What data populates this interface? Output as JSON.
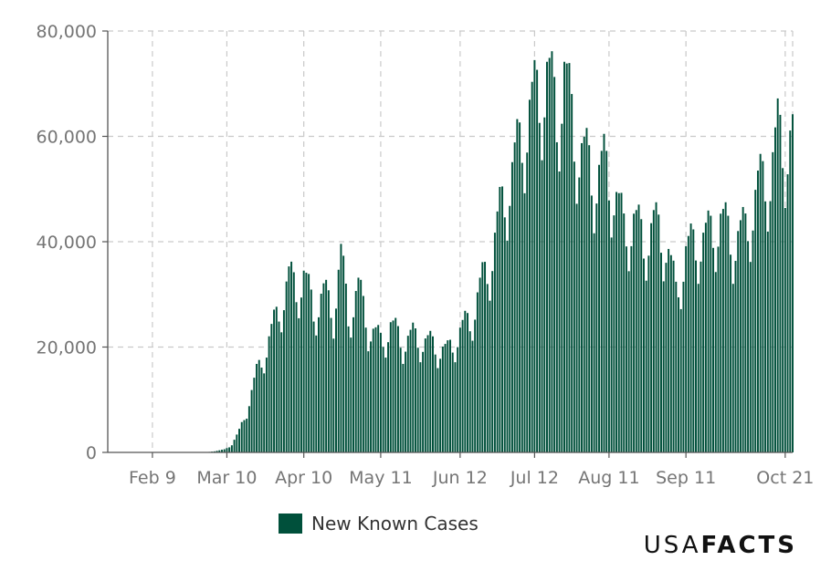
{
  "chart_data": {
    "type": "bar",
    "title": "",
    "xlabel": "",
    "ylabel": "",
    "ylim": [
      0,
      80000
    ],
    "yticks": [
      0,
      20000,
      40000,
      60000,
      80000
    ],
    "ytick_labels": [
      "0",
      "20,000",
      "40,000",
      "60,000",
      "80,000"
    ],
    "x_start": "2020-01-22",
    "x_end": "2020-10-24",
    "xtick_labels": [
      {
        "date": "2020-02-09",
        "label": "Feb 9"
      },
      {
        "date": "2020-03-10",
        "label": "Mar 10"
      },
      {
        "date": "2020-04-10",
        "label": "Apr 10"
      },
      {
        "date": "2020-05-11",
        "label": "May 11"
      },
      {
        "date": "2020-06-12",
        "label": "Jun 12"
      },
      {
        "date": "2020-07-12",
        "label": "Jul 12"
      },
      {
        "date": "2020-08-11",
        "label": "Aug 11"
      },
      {
        "date": "2020-09-11",
        "label": "Sep 11"
      },
      {
        "date": "2020-10-21",
        "label": "Oct 21"
      }
    ],
    "grid": true,
    "series": [
      {
        "name": "New Known Cases",
        "color": "#00503b",
        "anchors": [
          [
            "2020-01-22",
            0
          ],
          [
            "2020-03-01",
            0
          ],
          [
            "2020-03-05",
            200
          ],
          [
            "2020-03-09",
            600
          ],
          [
            "2020-03-12",
            1500
          ],
          [
            "2020-03-15",
            4000
          ],
          [
            "2020-03-18",
            8000
          ],
          [
            "2020-03-22",
            15000
          ],
          [
            "2020-03-26",
            20000
          ],
          [
            "2020-03-31",
            27000
          ],
          [
            "2020-04-04",
            33000
          ],
          [
            "2020-04-07",
            31000
          ],
          [
            "2020-04-10",
            33500
          ],
          [
            "2020-04-14",
            27000
          ],
          [
            "2020-04-18",
            30000
          ],
          [
            "2020-04-22",
            27000
          ],
          [
            "2020-04-25",
            37000
          ],
          [
            "2020-04-28",
            26000
          ],
          [
            "2020-05-02",
            31000
          ],
          [
            "2020-05-06",
            24000
          ],
          [
            "2020-05-11",
            21000
          ],
          [
            "2020-05-15",
            24000
          ],
          [
            "2020-05-20",
            21000
          ],
          [
            "2020-05-24",
            22000
          ],
          [
            "2020-05-29",
            21000
          ],
          [
            "2020-06-03",
            20000
          ],
          [
            "2020-06-07",
            19000
          ],
          [
            "2020-06-12",
            23000
          ],
          [
            "2020-06-16",
            25000
          ],
          [
            "2020-06-20",
            31000
          ],
          [
            "2020-06-24",
            36000
          ],
          [
            "2020-06-28",
            45000
          ],
          [
            "2020-07-02",
            52000
          ],
          [
            "2020-07-06",
            58000
          ],
          [
            "2020-07-10",
            65000
          ],
          [
            "2020-07-14",
            68000
          ],
          [
            "2020-07-17",
            72000
          ],
          [
            "2020-07-21",
            64000
          ],
          [
            "2020-07-24",
            72000
          ],
          [
            "2020-07-28",
            60000
          ],
          [
            "2020-08-01",
            56000
          ],
          [
            "2020-08-05",
            52000
          ],
          [
            "2020-08-09",
            54000
          ],
          [
            "2020-08-13",
            50000
          ],
          [
            "2020-08-17",
            42000
          ],
          [
            "2020-08-21",
            44000
          ],
          [
            "2020-08-25",
            40000
          ],
          [
            "2020-08-29",
            43000
          ],
          [
            "2020-09-03",
            40000
          ],
          [
            "2020-09-07",
            30000
          ],
          [
            "2020-09-11",
            38000
          ],
          [
            "2020-09-16",
            40000
          ],
          [
            "2020-09-20",
            41000
          ],
          [
            "2020-09-25",
            44000
          ],
          [
            "2020-09-30",
            40000
          ],
          [
            "2020-10-05",
            42000
          ],
          [
            "2020-10-10",
            50000
          ],
          [
            "2020-10-15",
            53000
          ],
          [
            "2020-10-18",
            60000
          ],
          [
            "2020-10-21",
            58000
          ],
          [
            "2020-10-24",
            60000
          ]
        ]
      }
    ],
    "legend": {
      "position": "bottom-center",
      "label": "New Known Cases",
      "swatch_color": "#00503b"
    }
  },
  "brand": {
    "light": "USA",
    "bold": "FACTS"
  }
}
